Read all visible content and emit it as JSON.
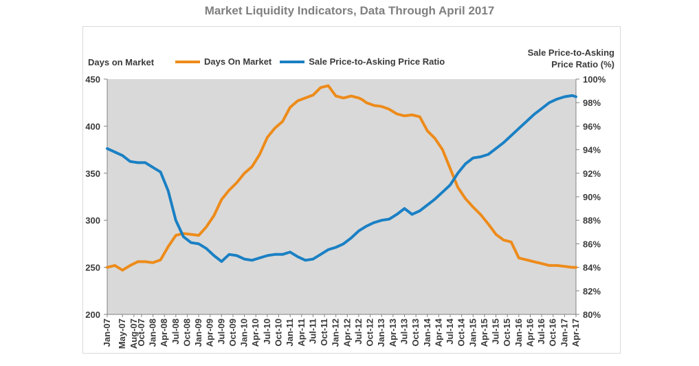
{
  "chart_data": {
    "type": "line",
    "title": "Market Liquidity Indicators, Data Through April 2017",
    "ylabel_left": "Days on Market",
    "ylabel_right_line1": "Sale Price-to-Asking",
    "ylabel_right_line2": "Price Ratio (%)",
    "ylim_left": [
      200,
      450
    ],
    "ylim_right": [
      80,
      100
    ],
    "yticks_left": [
      "200",
      "250",
      "300",
      "350",
      "400",
      "450"
    ],
    "yticks_right": [
      "80%",
      "82%",
      "84%",
      "86%",
      "88%",
      "90%",
      "92%",
      "94%",
      "96%",
      "98%",
      "100%"
    ],
    "x_tick_labels": [
      "Jan-07",
      "May-07",
      "Aug-07",
      "Oct-07",
      "Jan-08",
      "Apr-08",
      "Jul-08",
      "Oct-08",
      "Jan-09",
      "Apr-09",
      "Jul-09",
      "Oct-09",
      "Jan-10",
      "Apr-10",
      "Jul-10",
      "Oct-10",
      "Jan-11",
      "Apr-11",
      "Jul-11",
      "Oct-11",
      "Jan-12",
      "Apr-12",
      "Jul-12",
      "Oct-12",
      "Jan-13",
      "Apr-13",
      "Jul-13",
      "Oct-13",
      "Jan-14",
      "Apr-14",
      "Jul-14",
      "Oct-14",
      "Jan-15",
      "Apr-15",
      "Jul-15",
      "Oct-15",
      "Jan-16",
      "Apr-16",
      "Jul-16",
      "Oct-16",
      "Jan-17",
      "Apr-17"
    ],
    "x_tick_months": [
      0,
      4,
      7,
      9,
      12,
      15,
      18,
      21,
      24,
      27,
      30,
      33,
      36,
      39,
      42,
      45,
      48,
      51,
      54,
      57,
      60,
      63,
      66,
      69,
      72,
      75,
      78,
      81,
      84,
      87,
      90,
      93,
      96,
      99,
      102,
      105,
      108,
      111,
      114,
      117,
      120,
      123
    ],
    "grid": false,
    "legend_position": "top",
    "series": [
      {
        "name": "Days On Market",
        "axis": "left",
        "color": "#ed8b1a",
        "months": [
          0,
          2,
          4,
          6,
          8,
          10,
          12,
          14,
          16,
          18,
          20,
          22,
          24,
          26,
          28,
          30,
          32,
          34,
          36,
          38,
          40,
          42,
          44,
          46,
          48,
          50,
          52,
          54,
          56,
          58,
          60,
          62,
          64,
          66,
          67,
          68,
          70,
          72,
          74,
          76,
          78,
          80,
          82,
          84,
          86,
          88,
          90,
          92,
          94,
          96,
          98,
          100,
          102,
          104,
          106,
          108,
          110,
          112,
          114,
          116,
          118,
          120,
          122,
          123
        ],
        "values": [
          250,
          252,
          247,
          252,
          256,
          256,
          255,
          258,
          272,
          284,
          286,
          285,
          284,
          293,
          305,
          322,
          332,
          340,
          350,
          357,
          370,
          388,
          398,
          405,
          420,
          427,
          430,
          433,
          441,
          443,
          432,
          430,
          432,
          430,
          428,
          425,
          422,
          421,
          418,
          413,
          411,
          412,
          410,
          395,
          387,
          375,
          355,
          335,
          323,
          314,
          306,
          296,
          285,
          279,
          277,
          260,
          258,
          256,
          254,
          252,
          252,
          251,
          250,
          250
        ]
      },
      {
        "name": "Sale Price-to-Asking Price Ratio",
        "axis": "right",
        "color": "#1a80c4",
        "months": [
          0,
          2,
          4,
          6,
          8,
          10,
          12,
          14,
          16,
          18,
          20,
          22,
          24,
          26,
          28,
          30,
          32,
          34,
          36,
          38,
          40,
          42,
          44,
          46,
          48,
          50,
          52,
          54,
          56,
          58,
          60,
          62,
          64,
          66,
          68,
          70,
          72,
          74,
          76,
          78,
          80,
          82,
          84,
          86,
          88,
          90,
          92,
          94,
          96,
          98,
          100,
          102,
          104,
          106,
          108,
          110,
          112,
          114,
          116,
          118,
          120,
          122,
          123
        ],
        "values": [
          94.1,
          93.8,
          93.5,
          93.0,
          92.9,
          92.9,
          92.5,
          92.1,
          90.5,
          88.0,
          86.6,
          86.1,
          86.0,
          85.6,
          85.0,
          84.5,
          85.1,
          85.0,
          84.7,
          84.6,
          84.8,
          85.0,
          85.1,
          85.1,
          85.3,
          84.9,
          84.6,
          84.7,
          85.1,
          85.5,
          85.7,
          86.0,
          86.5,
          87.1,
          87.5,
          87.8,
          88.0,
          88.1,
          88.5,
          89.0,
          88.5,
          88.8,
          89.3,
          89.8,
          90.4,
          91.0,
          92.0,
          92.8,
          93.3,
          93.4,
          93.6,
          94.1,
          94.6,
          95.2,
          95.8,
          96.4,
          97.0,
          97.5,
          98.0,
          98.3,
          98.5,
          98.6,
          98.5
        ]
      }
    ]
  }
}
